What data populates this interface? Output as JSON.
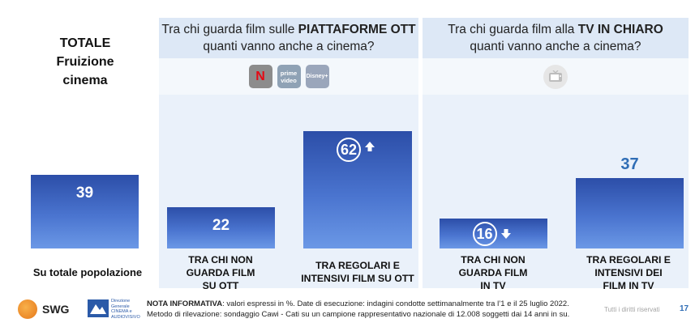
{
  "chart_data": {
    "type": "bar",
    "unit": "%",
    "total": {
      "title_lines": [
        "TOTALE",
        "Fruizione",
        "cinema"
      ],
      "value": 39,
      "label": "Su totale popolazione"
    },
    "groups": [
      {
        "title_pre": "Tra chi guarda film sulle ",
        "title_bold": "PIATTAFORME OTT",
        "title_line2": "quanti vanno anche a cinema?",
        "logos": [
          {
            "icon": "netflix-logo",
            "text": "N",
            "color": "#8c8c8c"
          },
          {
            "icon": "prime-video-logo",
            "text": "prime video",
            "color": "#8fa2b5"
          },
          {
            "icon": "disney-plus-logo",
            "text": "Disney+",
            "color": "#9aa6bb"
          }
        ],
        "bars": [
          {
            "category_lines": [
              "TRA CHI NON",
              "GUARDA FILM",
              "SU OTT"
            ],
            "value": 22,
            "trend": ""
          },
          {
            "category_lines": [
              "TRA REGOLARI E",
              "INTENSIVI FILM SU OTT"
            ],
            "value": 62,
            "trend": "up"
          }
        ]
      },
      {
        "title_pre": "Tra chi guarda film alla ",
        "title_bold": "TV IN CHIARO",
        "title_line2": "quanti vanno anche a cinema?",
        "logos": [
          {
            "icon": "tv-icon",
            "text": "",
            "color": "#e6e6e6"
          }
        ],
        "bars": [
          {
            "category_lines": [
              "TRA CHI NON",
              "GUARDA FILM",
              "IN TV"
            ],
            "value": 16,
            "trend": "down"
          },
          {
            "category_lines": [
              "TRA REGOLARI E",
              "INTENSIVI DEI",
              "FILM IN TV"
            ],
            "value": 37,
            "trend": ""
          }
        ]
      }
    ],
    "colors": {
      "bar_top": "#2c4ea8",
      "bar_bottom": "#6b98e6",
      "value_outside": "#2f6db5",
      "panel": "#eaf1fa"
    },
    "ylim": [
      0,
      70
    ]
  },
  "footer": {
    "brand": "SWG",
    "ministry_lines": [
      "Direzione Generale",
      "CINEMA e",
      "AUDIOVISIVO"
    ],
    "note_bold": "NOTA INFORMATIVA",
    "note_line1": ": valori espressi in %. Date di esecuzione: indagini condotte settimanalmente tra l’1 e il 25 luglio 2022.",
    "note_line2": "Metodo di rilevazione: sondaggio Cawi - Cati su un campione rappresentativo nazionale di 12.008 soggetti dai 14 anni in su.",
    "rights": "Tutti i diritti riservati",
    "page_number": "17"
  }
}
